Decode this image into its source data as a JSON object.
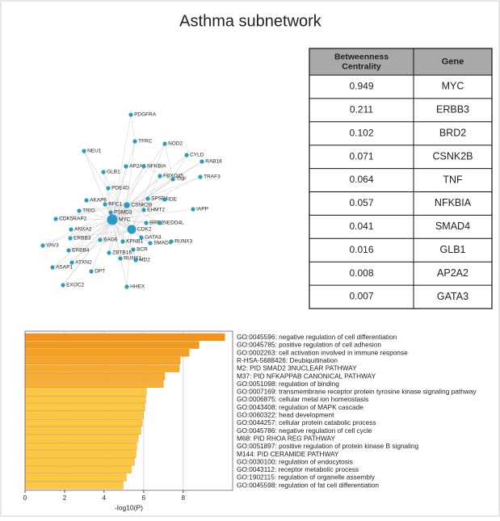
{
  "title": "Asthma subnetwork",
  "table": {
    "header": [
      "Betweenness Centrality",
      "Gene"
    ],
    "rows": [
      [
        "0.949",
        "MYC"
      ],
      [
        "0.211",
        "ERBB3"
      ],
      [
        "0.102",
        "BRD2"
      ],
      [
        "0.071",
        "CSNK2B"
      ],
      [
        "0.064",
        "TNF"
      ],
      [
        "0.057",
        "NFKBIA"
      ],
      [
        "0.041",
        "SMAD4"
      ],
      [
        "0.016",
        "GLB1"
      ],
      [
        "0.008",
        "AP2A2"
      ],
      [
        "0.007",
        "GATA3"
      ]
    ]
  },
  "network": {
    "nodes": [
      "PDGFRA",
      "TFRC",
      "NOD2",
      "CYLD",
      "RAB18",
      "NEU1",
      "AP2A2",
      "NFKBIA",
      "FBXO45",
      "TNF",
      "TRAF3",
      "GLB1",
      "PDE4D",
      "SPSB4",
      "IDE",
      "IAPP",
      "AKAP6",
      "RFC1",
      "CSNK2B",
      "TRIO",
      "PSMD3",
      "EHMT2",
      "CDK5RAP2",
      "MYC",
      "BRD2",
      "NEDD4L",
      "CDK2",
      "ANXA2",
      "GATA3",
      "ERBB3",
      "BAG6",
      "KPNB1",
      "SMAD4",
      "RUNX3",
      "VAV3",
      "ERBB4",
      "BCR",
      "ZBTB16",
      "RUNX1",
      "MD2",
      "ATXN2",
      "ASAP1",
      "DPT",
      "EXOC2",
      "HHEX"
    ]
  },
  "chart_data": {
    "type": "bar",
    "orientation": "horizontal",
    "categories": [
      "GO:0045596: negative regulation of cell differentiation",
      "GO:0045785: positive regulation of cell adhesion",
      "GO:0002263: cell activation involved in immune response",
      "R-HSA-5688426: Deubiquitination",
      "M2: PID SMAD2 3NUCLEAR PATHWAY",
      "M37: PID NFKAPPAB CANONICAL PATHWAY",
      "GO:0051098: regulation of binding",
      "GO:0007169: transmembrane receptor protein tyrosine kinase signaling pathway",
      "GO:0006875: cellular metal ion homeostasis",
      "GO:0043408: regulation of MAPK cascade",
      "GO:0060322: head development",
      "GO:0044257: cellular protein catabolic process",
      "GO:0045786: negative regulation of cell cycle",
      "M68: PID RHOA REG PATHWAY",
      "GO:0051897: positive regulation of protein kinase B signaling",
      "M144: PID CERAMIDE PATHWAY",
      "GO:0030100: regulation of endocytosis",
      "GO:0043112: receptor metabolic process",
      "GO:1902115: regulation of organelle assembly",
      "GO:0045598: regulation of fat cell differentiation"
    ],
    "values": [
      10.1,
      8.8,
      8.3,
      7.85,
      7.8,
      7.07,
      7.0,
      6.14,
      6.1,
      6.06,
      5.98,
      5.93,
      5.85,
      5.73,
      5.65,
      5.61,
      5.53,
      5.37,
      5.12,
      4.96
    ],
    "colors": [
      "#f39419",
      "#f39a1e",
      "#f5a024",
      "#f6a529",
      "#f6a92c",
      "#f7ad30",
      "#f7b134",
      "#fbc841",
      "#fbc841",
      "#fbc841",
      "#fbc841",
      "#fbc841",
      "#fbc841",
      "#fbc841",
      "#fbc841",
      "#fbc841",
      "#fbc841",
      "#fbc841",
      "#fbc841",
      "#fbc841"
    ],
    "xlabel": "-log10(P)",
    "xlim": [
      0,
      10.5
    ],
    "xticks": [
      0,
      2,
      4,
      6,
      8
    ],
    "grid": true
  }
}
